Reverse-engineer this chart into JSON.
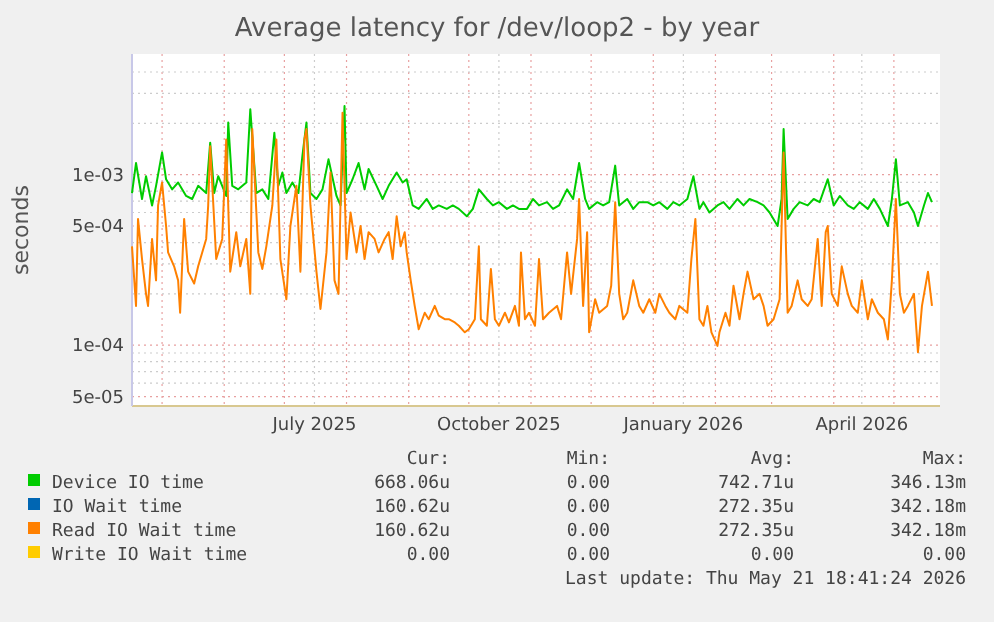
{
  "chart_data": {
    "type": "line",
    "title": "Average latency for /dev/loop2 - by year",
    "ylabel": "seconds",
    "log": true,
    "grid": true,
    "legend": "bottom",
    "xlim": [
      "2025-04-16",
      "2026-05-24"
    ],
    "xticks": [
      {
        "value": "2025-05-01",
        "label": null
      },
      {
        "value": "2025-06-01",
        "label": null
      },
      {
        "value": "2025-07-01",
        "label": null
      },
      {
        "value": "2025-07-16",
        "label": "July 2025"
      },
      {
        "value": "2025-08-01",
        "label": null
      },
      {
        "value": "2025-09-01",
        "label": null
      },
      {
        "value": "2025-10-01",
        "label": null
      },
      {
        "value": "2025-10-16",
        "label": "October 2025"
      },
      {
        "value": "2025-11-01",
        "label": null
      },
      {
        "value": "2025-12-01",
        "label": null
      },
      {
        "value": "2026-01-01",
        "label": null
      },
      {
        "value": "2026-01-16",
        "label": "January 2026"
      },
      {
        "value": "2026-02-01",
        "label": null
      },
      {
        "value": "2026-03-01",
        "label": null
      },
      {
        "value": "2026-04-01",
        "label": null
      },
      {
        "value": "2026-04-15",
        "label": "April 2026"
      },
      {
        "value": "2026-05-01",
        "label": null
      }
    ],
    "ylim": [
      4.4e-05,
      0.0051
    ],
    "yticks": [
      {
        "value": 5e-05,
        "label": "5e-05"
      },
      {
        "value": 6e-05,
        "label": null
      },
      {
        "value": 7e-05,
        "label": null
      },
      {
        "value": 8e-05,
        "label": null
      },
      {
        "value": 9e-05,
        "label": null
      },
      {
        "value": 0.0001,
        "label": "1e-04"
      },
      {
        "value": 0.0002,
        "label": null
      },
      {
        "value": 0.0003,
        "label": null
      },
      {
        "value": 0.0004,
        "label": null
      },
      {
        "value": 0.0005,
        "label": "5e-04"
      },
      {
        "value": 0.0006,
        "label": null
      },
      {
        "value": 0.0007,
        "label": null
      },
      {
        "value": 0.0008,
        "label": null
      },
      {
        "value": 0.0009,
        "label": null
      },
      {
        "value": 0.001,
        "label": "1e-03"
      },
      {
        "value": 0.002,
        "label": null
      },
      {
        "value": 0.003,
        "label": null
      },
      {
        "value": 0.004,
        "label": null
      }
    ],
    "series": [
      {
        "name": "Device IO time",
        "color": "#00cc00",
        "x": [
          "2025-04-16",
          "2025-04-18",
          "2025-04-21",
          "2025-04-23",
          "2025-04-26",
          "2025-04-28",
          "2025-05-01",
          "2025-05-03",
          "2025-05-06",
          "2025-05-09",
          "2025-05-13",
          "2025-05-16",
          "2025-05-19",
          "2025-05-23",
          "2025-05-25",
          "2025-05-27",
          "2025-05-29",
          "2025-06-02",
          "2025-06-03",
          "2025-06-05",
          "2025-06-08",
          "2025-06-12",
          "2025-06-14",
          "2025-06-17",
          "2025-06-20",
          "2025-06-23",
          "2025-06-26",
          "2025-06-28",
          "2025-06-30",
          "2025-07-02",
          "2025-07-05",
          "2025-07-08",
          "2025-07-10",
          "2025-07-12",
          "2025-07-14",
          "2025-07-17",
          "2025-07-20",
          "2025-07-23",
          "2025-07-27",
          "2025-07-29",
          "2025-07-31",
          "2025-08-01",
          "2025-08-04",
          "2025-08-07",
          "2025-08-10",
          "2025-08-12",
          "2025-08-16",
          "2025-08-19",
          "2025-08-22",
          "2025-08-26",
          "2025-08-29",
          "2025-08-31",
          "2025-09-03",
          "2025-09-06",
          "2025-09-10",
          "2025-09-13",
          "2025-09-16",
          "2025-09-20",
          "2025-09-23",
          "2025-09-26",
          "2025-09-30",
          "2025-10-03",
          "2025-10-06",
          "2025-10-10",
          "2025-10-13",
          "2025-10-16",
          "2025-10-20",
          "2025-10-23",
          "2025-10-26",
          "2025-10-30",
          "2025-11-02",
          "2025-11-05",
          "2025-11-09",
          "2025-11-12",
          "2025-11-15",
          "2025-11-19",
          "2025-11-22",
          "2025-11-25",
          "2025-11-28",
          "2025-11-30",
          "2025-12-04",
          "2025-12-07",
          "2025-12-10",
          "2025-12-13",
          "2025-12-15",
          "2025-12-19",
          "2025-12-22",
          "2025-12-25",
          "2025-12-29",
          "2026-01-01",
          "2026-01-04",
          "2026-01-08",
          "2026-01-11",
          "2026-01-14",
          "2026-01-18",
          "2026-01-21",
          "2026-01-24",
          "2026-01-26",
          "2026-01-29",
          "2026-02-02",
          "2026-02-05",
          "2026-02-08",
          "2026-02-12",
          "2026-02-15",
          "2026-02-18",
          "2026-02-22",
          "2026-02-25",
          "2026-02-28",
          "2026-03-04",
          "2026-03-06",
          "2026-03-07",
          "2026-03-09",
          "2026-03-12",
          "2026-03-15",
          "2026-03-19",
          "2026-03-22",
          "2026-03-25",
          "2026-03-29",
          "2026-04-01",
          "2026-04-04",
          "2026-04-08",
          "2026-04-11",
          "2026-04-14",
          "2026-04-18",
          "2026-04-21",
          "2026-04-24",
          "2026-04-28",
          "2026-04-30",
          "2026-05-02",
          "2026-05-04",
          "2026-05-08",
          "2026-05-11",
          "2026-05-13",
          "2026-05-16",
          "2026-05-18",
          "2026-05-20"
        ],
        "values": [
          0.00078,
          0.00117,
          0.00072,
          0.00098,
          0.00066,
          0.00086,
          0.00135,
          0.00094,
          0.00082,
          0.0009,
          0.00075,
          0.00072,
          0.00086,
          0.00078,
          0.00154,
          0.00078,
          0.00098,
          0.00075,
          0.00202,
          0.00086,
          0.00082,
          0.0009,
          0.00242,
          0.00078,
          0.00082,
          0.00072,
          0.00176,
          0.00086,
          0.00103,
          0.00078,
          0.0009,
          0.00078,
          0.00129,
          0.00202,
          0.00078,
          0.00072,
          0.00082,
          0.00123,
          0.00075,
          0.00066,
          0.00253,
          0.00078,
          0.00094,
          0.00117,
          0.00082,
          0.00108,
          0.00086,
          0.00072,
          0.00086,
          0.00103,
          0.0009,
          0.00094,
          0.00066,
          0.00063,
          0.00072,
          0.00063,
          0.00066,
          0.00063,
          0.00066,
          0.00063,
          0.00057,
          0.00063,
          0.00082,
          0.00072,
          0.00066,
          0.00069,
          0.00063,
          0.00066,
          0.00063,
          0.00063,
          0.00072,
          0.00066,
          0.00069,
          0.00063,
          0.00066,
          0.00082,
          0.00072,
          0.00117,
          0.00072,
          0.00063,
          0.00069,
          0.00066,
          0.00069,
          0.00113,
          0.00066,
          0.00072,
          0.00063,
          0.00069,
          0.00069,
          0.00066,
          0.00069,
          0.00063,
          0.00069,
          0.00066,
          0.00072,
          0.00098,
          0.00063,
          0.00069,
          0.0006,
          0.00066,
          0.00069,
          0.00063,
          0.00072,
          0.00066,
          0.00072,
          0.00069,
          0.00066,
          0.0006,
          0.0005,
          0.00072,
          0.00185,
          0.00055,
          0.00063,
          0.00069,
          0.00066,
          0.00072,
          0.00069,
          0.00094,
          0.00066,
          0.00075,
          0.00066,
          0.00063,
          0.00069,
          0.00063,
          0.00072,
          0.00063,
          0.0005,
          0.00072,
          0.00123,
          0.00066,
          0.00069,
          0.0006,
          0.0005,
          0.00066,
          0.00078,
          0.00069
        ]
      },
      {
        "name": "IO Wait time",
        "color": "#0066b3"
      },
      {
        "name": "Read IO Wait time",
        "color": "#ff8000",
        "x": [
          "2025-04-16",
          "2025-04-18",
          "2025-04-19",
          "2025-04-21",
          "2025-04-23",
          "2025-04-24",
          "2025-04-26",
          "2025-04-28",
          "2025-04-29",
          "2025-05-01",
          "2025-05-03",
          "2025-05-04",
          "2025-05-07",
          "2025-05-09",
          "2025-05-10",
          "2025-05-12",
          "2025-05-14",
          "2025-05-17",
          "2025-05-19",
          "2025-05-23",
          "2025-05-24",
          "2025-05-25",
          "2025-05-28",
          "2025-05-31",
          "2025-06-02",
          "2025-06-04",
          "2025-06-07",
          "2025-06-09",
          "2025-06-12",
          "2025-06-14",
          "2025-06-15",
          "2025-06-18",
          "2025-06-20",
          "2025-06-22",
          "2025-06-25",
          "2025-06-27",
          "2025-06-29",
          "2025-07-02",
          "2025-07-04",
          "2025-07-07",
          "2025-07-09",
          "2025-07-11",
          "2025-07-12",
          "2025-07-14",
          "2025-07-17",
          "2025-07-19",
          "2025-07-22",
          "2025-07-24",
          "2025-07-26",
          "2025-07-28",
          "2025-07-30",
          "2025-08-01",
          "2025-08-03",
          "2025-08-06",
          "2025-08-08",
          "2025-08-10",
          "2025-08-12",
          "2025-08-15",
          "2025-08-17",
          "2025-08-20",
          "2025-08-22",
          "2025-08-24",
          "2025-08-26",
          "2025-08-28",
          "2025-08-30",
          "2025-08-31",
          "2025-09-02",
          "2025-09-04",
          "2025-09-06",
          "2025-09-09",
          "2025-09-11",
          "2025-09-14",
          "2025-09-16",
          "2025-09-19",
          "2025-09-21",
          "2025-09-24",
          "2025-09-26",
          "2025-09-29",
          "2025-10-01",
          "2025-10-04",
          "2025-10-06",
          "2025-10-07",
          "2025-10-10",
          "2025-10-12",
          "2025-10-14",
          "2025-10-16",
          "2025-10-19",
          "2025-10-21",
          "2025-10-24",
          "2025-10-26",
          "2025-10-27",
          "2025-10-29",
          "2025-10-31",
          "2025-11-03",
          "2025-11-05",
          "2025-11-07",
          "2025-11-10",
          "2025-11-14",
          "2025-11-16",
          "2025-11-19",
          "2025-11-21",
          "2025-11-24",
          "2025-11-25",
          "2025-11-27",
          "2025-11-29",
          "2025-11-30",
          "2025-12-03",
          "2025-12-05",
          "2025-12-09",
          "2025-12-11",
          "2025-12-13",
          "2025-12-15",
          "2025-12-17",
          "2025-12-19",
          "2025-12-22",
          "2025-12-25",
          "2025-12-27",
          "2025-12-30",
          "2026-01-02",
          "2026-01-04",
          "2026-01-07",
          "2026-01-09",
          "2026-01-12",
          "2026-01-14",
          "2026-01-18",
          "2026-01-20",
          "2026-01-22",
          "2026-01-24",
          "2026-01-26",
          "2026-01-28",
          "2026-01-30",
          "2026-02-02",
          "2026-02-03",
          "2026-02-06",
          "2026-02-08",
          "2026-02-10",
          "2026-02-13",
          "2026-02-15",
          "2026-02-17",
          "2026-02-20",
          "2026-02-23",
          "2026-02-25",
          "2026-02-27",
          "2026-03-02",
          "2026-03-05",
          "2026-03-07",
          "2026-03-09",
          "2026-03-11",
          "2026-03-14",
          "2026-03-16",
          "2026-03-19",
          "2026-03-21",
          "2026-03-24",
          "2026-03-26",
          "2026-03-28",
          "2026-03-29",
          "2026-03-31",
          "2026-04-03",
          "2026-04-05",
          "2026-04-08",
          "2026-04-10",
          "2026-04-13",
          "2026-04-15",
          "2026-04-18",
          "2026-04-20",
          "2026-04-23",
          "2026-04-26",
          "2026-04-28",
          "2026-04-30",
          "2026-05-02",
          "2026-05-04",
          "2026-05-06",
          "2026-05-08",
          "2026-05-11",
          "2026-05-13",
          "2026-05-15",
          "2026-05-18",
          "2026-05-20"
        ],
        "values": [
          0.00038,
          0.00017,
          0.00055,
          0.00032,
          0.0002,
          0.00017,
          0.00042,
          0.00024,
          0.00066,
          0.0009,
          0.0005,
          0.00035,
          0.00029,
          0.00024,
          0.000155,
          0.00055,
          0.00027,
          0.00023,
          0.00029,
          0.00042,
          0.00066,
          0.00147,
          0.00032,
          0.00042,
          0.00161,
          0.00027,
          0.00046,
          0.00029,
          0.00042,
          0.0002,
          0.00185,
          0.00035,
          0.00028,
          0.00038,
          0.00066,
          0.00161,
          0.00032,
          0.000186,
          0.0005,
          0.00086,
          0.00027,
          0.00161,
          0.00185,
          0.00066,
          0.00027,
          0.000163,
          0.00035,
          0.00103,
          0.00024,
          0.0002,
          0.00231,
          0.00032,
          0.0006,
          0.00035,
          0.0005,
          0.00032,
          0.00046,
          0.00042,
          0.00035,
          0.00042,
          0.00046,
          0.00032,
          0.00057,
          0.00038,
          0.00046,
          0.00035,
          0.00024,
          0.00017,
          0.000124,
          0.000155,
          0.000142,
          0.00017,
          0.000149,
          0.000142,
          0.000142,
          0.000136,
          0.00013,
          0.000119,
          0.000124,
          0.000142,
          0.00038,
          0.000142,
          0.00013,
          0.00028,
          0.000142,
          0.00013,
          0.000155,
          0.000136,
          0.00017,
          0.00013,
          0.00035,
          0.000142,
          0.000155,
          0.00013,
          0.00032,
          0.000142,
          0.000155,
          0.00017,
          0.000142,
          0.00035,
          0.0002,
          0.00042,
          0.00072,
          0.00017,
          0.00046,
          0.000119,
          0.000186,
          0.000155,
          0.00017,
          0.000223,
          0.00069,
          0.0002,
          0.000142,
          0.000155,
          0.00024,
          0.00017,
          0.000155,
          0.000186,
          0.000155,
          0.0002,
          0.00017,
          0.000155,
          0.000142,
          0.00017,
          0.000155,
          0.00032,
          0.00055,
          0.000142,
          0.00013,
          0.00017,
          0.000119,
          9.9e-05,
          0.000119,
          0.000155,
          0.00013,
          0.000223,
          0.000142,
          0.0002,
          0.00027,
          0.000186,
          0.0002,
          0.00017,
          0.00013,
          0.000142,
          0.000186,
          0.00135,
          0.000155,
          0.00017,
          0.00024,
          0.000186,
          0.00017,
          0.000186,
          0.00042,
          0.00017,
          0.00046,
          0.0005,
          0.0002,
          0.00017,
          0.00029,
          0.0002,
          0.00017,
          0.000155,
          0.00024,
          0.000142,
          0.000186,
          0.000155,
          0.000142,
          0.000108,
          0.00024,
          0.00072,
          0.0002,
          0.000155,
          0.00017,
          0.0002,
          9.1e-05,
          0.00017,
          0.00027,
          0.00017
        ]
      },
      {
        "name": "Write IO Wait time",
        "color": "#ffcc00"
      }
    ],
    "annotations": [
      "Cur:",
      "Min:",
      "Avg:",
      "Max:",
      "668.06u",
      "0.00",
      "742.71u",
      "346.13m",
      "160.62u",
      "0.00",
      "272.35u",
      "342.18m",
      "160.62u",
      "0.00",
      "272.35u",
      "342.18m",
      "0.00",
      "0.00",
      "0.00",
      "0.00",
      "Last update: Thu May 21 18:41:24 2026"
    ]
  }
}
